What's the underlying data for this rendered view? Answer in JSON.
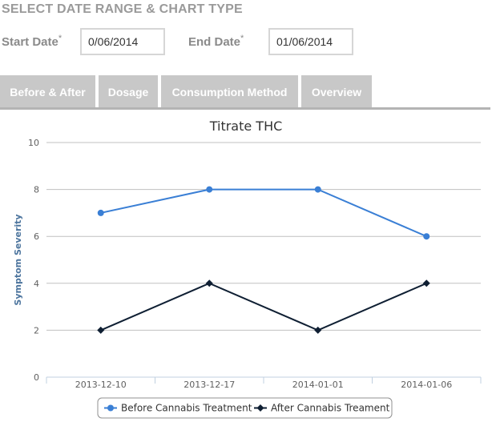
{
  "header": {
    "title": "SELECT DATE RANGE & CHART TYPE"
  },
  "form": {
    "start_label": "Start Date",
    "end_label": "End Date",
    "required_mark": "*",
    "start_value": "0/06/2014",
    "end_value": "01/06/2014"
  },
  "tabs": [
    {
      "label": "Before & After"
    },
    {
      "label": "Dosage"
    },
    {
      "label": "Consumption Method"
    },
    {
      "label": "Overview"
    }
  ],
  "colors": {
    "before": "#3a7fd5",
    "after": "#0f1f33",
    "tab_bg": "#c8c8c8",
    "grid": "#c0c0c0"
  },
  "chart_data": {
    "type": "line",
    "title": "Titrate THC",
    "ylabel": "Symptom Severity",
    "xlabel": "",
    "categories": [
      "2013-12-10",
      "2013-12-17",
      "2014-01-01",
      "2014-01-06"
    ],
    "ylim": [
      0,
      10
    ],
    "yticks": [
      0,
      2,
      4,
      6,
      8,
      10
    ],
    "grid": true,
    "legend_position": "bottom-center",
    "series": [
      {
        "name": "Before Cannabis Treatment",
        "values": [
          7,
          8,
          8,
          6
        ],
        "color": "#3a7fd5",
        "marker": "circle"
      },
      {
        "name": "After Cannabis Treament",
        "values": [
          2,
          4,
          2,
          4
        ],
        "color": "#0f1f33",
        "marker": "diamond"
      }
    ]
  }
}
